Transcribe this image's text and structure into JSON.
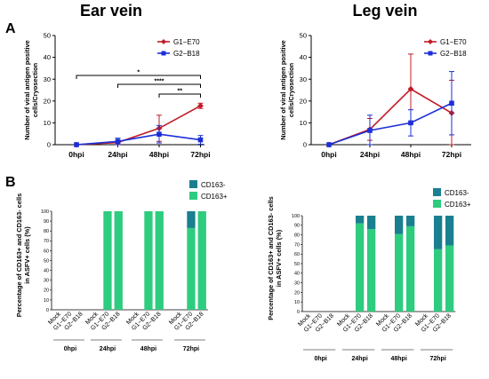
{
  "labels": {
    "panel_a": "A",
    "panel_b": "B"
  },
  "chart_data": [
    {
      "id": "ear-line",
      "type": "line",
      "title": "Ear vein",
      "ylabel": [
        "Number of viral antigen positive",
        "cells/Cryosection"
      ],
      "ylim": [
        0,
        50
      ],
      "yticks": [
        0,
        10,
        20,
        30,
        40,
        50
      ],
      "categories": [
        "0hpi",
        "24hpi",
        "48hpi",
        "72hpi"
      ],
      "series": [
        {
          "name": "G1−E70",
          "color": "#c01c28",
          "marker": "diamond",
          "values": [
            0,
            1.0,
            7.5,
            17.8
          ],
          "err": [
            0,
            0.5,
            6.0,
            1.2
          ]
        },
        {
          "name": "G2−B18",
          "color": "#1b2fd8",
          "marker": "square",
          "values": [
            0,
            1.5,
            4.8,
            2.2
          ],
          "err": [
            0,
            1.5,
            4.0,
            2.0
          ]
        }
      ],
      "significance": [
        {
          "from": "0hpi",
          "to": "72hpi",
          "label": "*"
        },
        {
          "from": "24hpi",
          "to": "72hpi",
          "label": "****"
        },
        {
          "from": "48hpi",
          "to": "72hpi",
          "label": "**"
        }
      ],
      "legend": "top-right"
    },
    {
      "id": "leg-line",
      "type": "line",
      "title": "Leg vein",
      "ylabel": [
        "Number of viral antigen positive",
        "cells/Cryosection"
      ],
      "ylim": [
        0,
        50
      ],
      "yticks": [
        0,
        10,
        20,
        30,
        40,
        50
      ],
      "categories": [
        "0hpi",
        "24hpi",
        "48hpi",
        "72hpi"
      ],
      "series": [
        {
          "name": "G1−E70",
          "color": "#c01c28",
          "marker": "diamond",
          "values": [
            0,
            7.0,
            25.5,
            14.5
          ],
          "err": [
            0,
            5.0,
            16.0,
            15.0
          ]
        },
        {
          "name": "G2−B18",
          "color": "#1b2fd8",
          "marker": "square",
          "values": [
            0,
            6.5,
            10.0,
            19.0
          ],
          "err": [
            0,
            7.0,
            6.0,
            14.5
          ]
        }
      ],
      "legend": "top-right"
    },
    {
      "id": "ear-bar",
      "type": "bar",
      "stacked": true,
      "ylabel": [
        "Percentage of CD163+ and CD163- cells",
        "in ASFV+ cells (%)"
      ],
      "ylim": [
        0,
        100
      ],
      "yticks": [
        0,
        10,
        20,
        30,
        40,
        50,
        60,
        70,
        80,
        90,
        100
      ],
      "groups": [
        "0hpi",
        "24hpi",
        "48hpi",
        "72hpi"
      ],
      "categories": [
        "Mock",
        "G1−E70",
        "G2−B18",
        "Mock",
        "G1−E70",
        "G2−B18",
        "Mock",
        "G1−E70",
        "G2−B18",
        "Mock",
        "G1−E70",
        "G2−B18"
      ],
      "series": [
        {
          "name": "CD163+",
          "color": "#2ecc7f",
          "values": [
            0,
            0,
            0,
            0,
            100,
            100,
            0,
            100,
            100,
            0,
            83,
            100
          ]
        },
        {
          "name": "CD163-",
          "color": "#1a7f8f",
          "values": [
            0,
            0,
            0,
            0,
            0,
            0,
            0,
            0,
            0,
            0,
            17,
            0
          ]
        }
      ],
      "legend_order": [
        "CD163-",
        "CD163+"
      ],
      "legend": "top-right"
    },
    {
      "id": "leg-bar",
      "type": "bar",
      "stacked": true,
      "ylabel": [
        "Percentage of CD163+ and CD163- cells",
        "in ASFV+ cells (%)"
      ],
      "ylim": [
        0,
        100
      ],
      "yticks": [
        0,
        10,
        20,
        30,
        40,
        50,
        60,
        70,
        80,
        90,
        100
      ],
      "groups": [
        "0hpi",
        "24hpi",
        "48hpi",
        "72hpi"
      ],
      "categories": [
        "Mock",
        "G1−E70",
        "G2−B18",
        "Mock",
        "G1−E70",
        "G2−B18",
        "Mock",
        "G1−E70",
        "G2−B18",
        "Mock",
        "G1−E70",
        "G2−B18"
      ],
      "series": [
        {
          "name": "CD163+",
          "color": "#2ecc7f",
          "values": [
            0,
            0,
            0,
            0,
            92,
            86,
            0,
            81,
            89,
            0,
            65,
            69
          ]
        },
        {
          "name": "CD163-",
          "color": "#1a7f8f",
          "values": [
            0,
            0,
            0,
            0,
            8,
            14,
            0,
            19,
            11,
            0,
            35,
            31
          ]
        }
      ],
      "legend_order": [
        "CD163-",
        "CD163+"
      ],
      "legend": "top-right"
    }
  ]
}
